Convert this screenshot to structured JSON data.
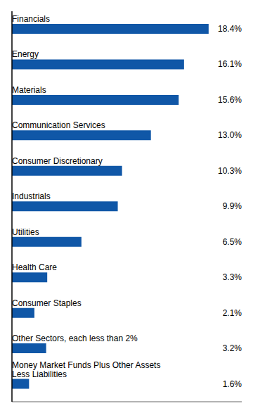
{
  "chart_data": {
    "type": "bar",
    "orientation": "horizontal",
    "categories": [
      "Financials",
      "Energy",
      "Materials",
      "Communication Services",
      "Consumer Discretionary",
      "Industrials",
      "Utilities",
      "Health Care",
      "Consumer Staples",
      "Other Sectors, each less than 2%",
      "Money Market Funds Plus Other Assets\nLess Liabilities"
    ],
    "values": [
      18.4,
      16.1,
      15.6,
      13.0,
      10.3,
      9.9,
      6.5,
      3.3,
      2.1,
      3.2,
      1.6
    ],
    "value_labels": [
      "18.4%",
      "16.1%",
      "15.6%",
      "13.0%",
      "10.3%",
      "9.9%",
      "6.5%",
      "3.3%",
      "2.1%",
      "3.2%",
      "1.6%"
    ],
    "data_labels": true,
    "color": "#1057a7",
    "xlim": [
      0,
      21.5
    ],
    "tick_labels": false,
    "grid": false
  }
}
